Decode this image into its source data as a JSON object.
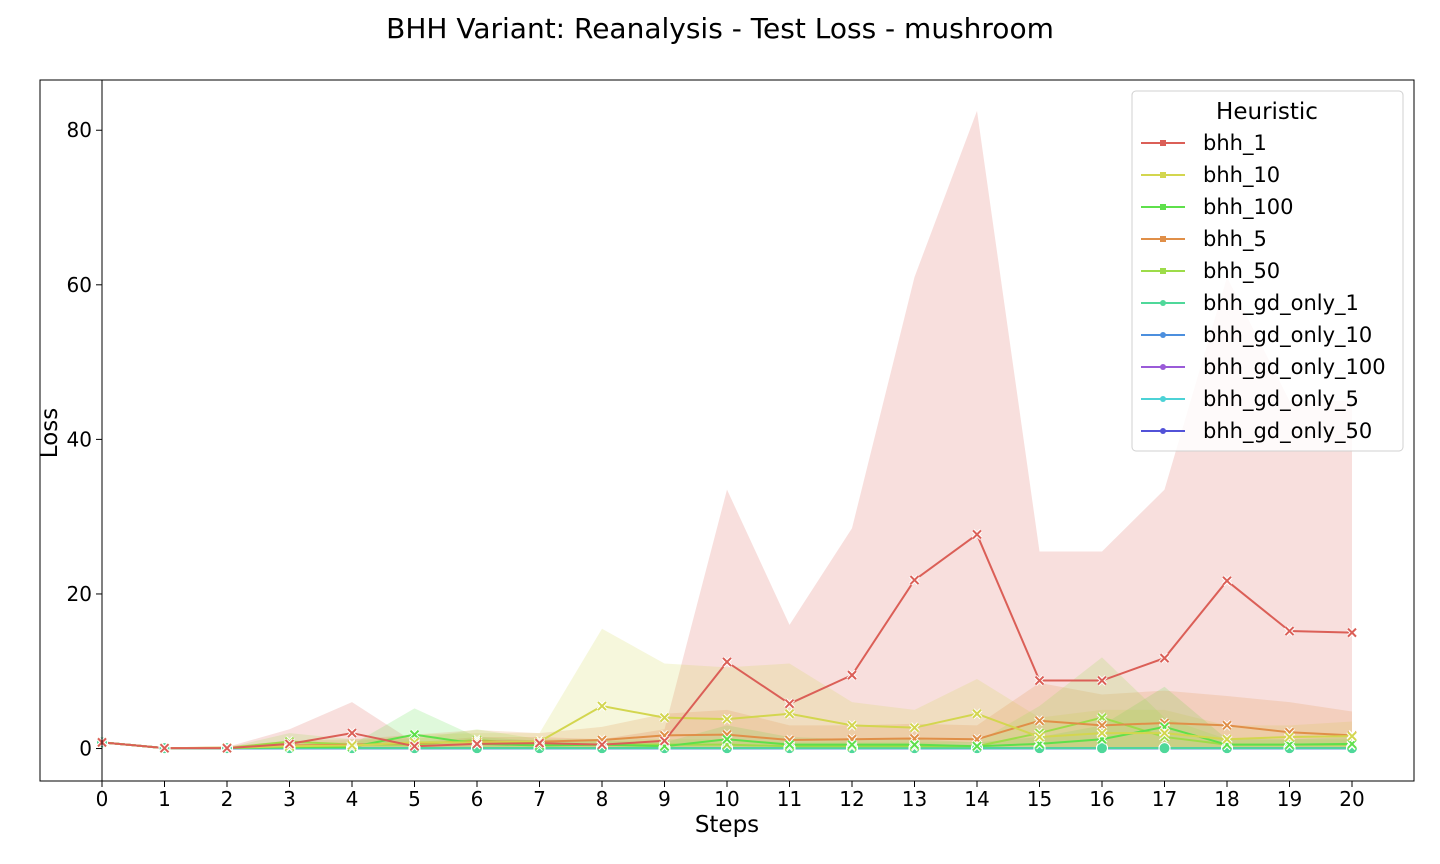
{
  "chart_data": {
    "type": "line",
    "title": "BHH Variant: Reanalysis - Test Loss - mushroom",
    "xlabel": "Steps",
    "ylabel": "Loss",
    "x": [
      0,
      1,
      2,
      3,
      4,
      5,
      6,
      7,
      8,
      9,
      10,
      11,
      12,
      13,
      14,
      15,
      16,
      17,
      18,
      19,
      20
    ],
    "xlim": [
      0,
      20
    ],
    "ylim": [
      -4.2,
      86.5
    ],
    "yticks": [
      0,
      20,
      40,
      60,
      80
    ],
    "grid": false,
    "legend": {
      "title": "Heuristic",
      "placement": "top-right"
    },
    "series": [
      {
        "name": "bhh_1",
        "color": "#db5f57",
        "marker": "x",
        "values": [
          0.8,
          0.05,
          0.05,
          0.6,
          2.0,
          0.3,
          0.6,
          0.7,
          0.5,
          1.0,
          11.2,
          5.8,
          9.5,
          21.8,
          27.7,
          8.8,
          8.8,
          11.7,
          21.7,
          15.2,
          15.0
        ],
        "lower": [
          0.8,
          0.0,
          0.0,
          0.0,
          0.0,
          0.0,
          0.0,
          0.0,
          0.0,
          0.0,
          0.0,
          0.0,
          0.0,
          0.0,
          0.0,
          0.0,
          0.0,
          0.0,
          0.0,
          0.0,
          0.0
        ],
        "upper": [
          0.8,
          0.1,
          0.2,
          2.5,
          6.0,
          0.8,
          1.5,
          1.5,
          1.2,
          2.5,
          33.5,
          16.0,
          28.5,
          61.0,
          82.5,
          25.5,
          25.5,
          33.5,
          61.0,
          45.0,
          45.0
        ]
      },
      {
        "name": "bhh_10",
        "color": "#d3d64f",
        "marker": "x",
        "values": [
          0.8,
          0.05,
          0.1,
          0.3,
          0.4,
          0.8,
          0.8,
          0.9,
          5.5,
          4.0,
          3.8,
          4.5,
          3.0,
          2.7,
          4.5,
          1.5,
          2.0,
          2.0,
          1.2,
          1.5,
          1.6
        ],
        "lower": [
          0.8,
          0.0,
          0.0,
          0.0,
          0.0,
          0.0,
          0.0,
          0.0,
          0.0,
          0.0,
          0.0,
          0.5,
          0.5,
          0.5,
          0.8,
          0.2,
          0.2,
          0.2,
          0.2,
          0.2,
          0.2
        ],
        "upper": [
          0.8,
          0.1,
          0.3,
          0.8,
          0.9,
          1.8,
          2.0,
          2.0,
          15.5,
          11.0,
          10.5,
          11.0,
          6.0,
          5.0,
          9.0,
          4.0,
          5.0,
          5.0,
          3.0,
          3.0,
          3.5
        ]
      },
      {
        "name": "bhh_100",
        "color": "#5ee04b",
        "marker": "x",
        "values": [
          0.8,
          0.05,
          0.05,
          0.2,
          0.2,
          1.8,
          0.6,
          0.4,
          0.5,
          0.3,
          1.2,
          0.5,
          0.5,
          0.5,
          0.3,
          0.6,
          1.2,
          2.8,
          0.5,
          0.5,
          0.6
        ],
        "lower": [
          0.8,
          0.0,
          0.0,
          0.0,
          0.0,
          0.0,
          0.0,
          0.0,
          0.0,
          0.0,
          0.0,
          0.0,
          0.0,
          0.0,
          0.0,
          0.0,
          0.0,
          0.0,
          0.0,
          0.0,
          0.0
        ],
        "upper": [
          0.8,
          0.1,
          0.1,
          0.5,
          0.5,
          5.2,
          1.5,
          1.0,
          1.0,
          0.8,
          3.0,
          1.5,
          1.2,
          1.2,
          0.8,
          1.5,
          3.0,
          8.0,
          1.2,
          1.2,
          1.5
        ]
      },
      {
        "name": "bhh_5",
        "color": "#e08f48",
        "marker": "x",
        "values": [
          0.8,
          0.05,
          0.1,
          0.4,
          0.5,
          0.7,
          0.9,
          0.9,
          1.1,
          1.7,
          1.8,
          1.1,
          1.2,
          1.3,
          1.2,
          3.6,
          3.0,
          3.3,
          3.0,
          2.1,
          1.7
        ],
        "lower": [
          0.8,
          0.0,
          0.0,
          0.0,
          0.0,
          0.0,
          0.0,
          0.0,
          0.0,
          0.0,
          0.0,
          0.0,
          0.0,
          0.0,
          0.0,
          0.0,
          0.0,
          0.0,
          0.0,
          0.0,
          0.0
        ],
        "upper": [
          0.8,
          0.1,
          0.3,
          1.0,
          1.2,
          1.8,
          2.4,
          2.0,
          2.8,
          4.5,
          5.0,
          3.0,
          3.0,
          3.2,
          3.0,
          8.5,
          7.0,
          7.5,
          6.8,
          6.0,
          4.8
        ]
      },
      {
        "name": "bhh_50",
        "color": "#9ddc49",
        "marker": "x",
        "values": [
          0.8,
          0.05,
          0.05,
          0.9,
          0.5,
          0.5,
          1.1,
          0.5,
          0.5,
          0.5,
          0.5,
          0.3,
          0.3,
          0.3,
          0.3,
          2.0,
          4.0,
          1.5,
          0.5,
          0.5,
          0.5
        ],
        "lower": [
          0.8,
          0.0,
          0.0,
          0.0,
          0.0,
          0.0,
          0.0,
          0.0,
          0.0,
          0.0,
          0.0,
          0.0,
          0.0,
          0.0,
          0.0,
          0.0,
          0.0,
          0.0,
          0.0,
          0.0,
          0.0
        ],
        "upper": [
          0.8,
          0.1,
          0.1,
          2.0,
          1.2,
          1.2,
          2.5,
          1.2,
          1.2,
          1.2,
          1.2,
          0.8,
          0.8,
          0.8,
          0.8,
          5.5,
          11.8,
          4.0,
          1.2,
          1.2,
          1.2
        ]
      },
      {
        "name": "bhh_gd_only_1",
        "color": "#4fd89a",
        "marker": "o",
        "values": [
          0.8,
          0.05,
          0.05,
          0.05,
          0.05,
          0.05,
          0.05,
          0.05,
          0.05,
          0.05,
          0.05,
          0.05,
          0.05,
          0.05,
          0.05,
          0.05,
          0.05,
          0.05,
          0.05,
          0.05,
          0.05
        ]
      },
      {
        "name": "bhh_gd_only_10",
        "color": "#4c8fde",
        "marker": "o",
        "values": [
          0.8,
          0.05,
          0.02,
          0.02,
          0.02,
          0.02,
          0.02,
          0.02,
          0.02,
          0.02,
          0.02,
          0.02,
          0.02,
          0.02,
          0.02,
          0.02,
          0.02,
          0.02,
          0.02,
          0.02,
          0.02
        ]
      },
      {
        "name": "bhh_gd_only_100",
        "color": "#9a5bd8",
        "marker": "o",
        "values": [
          0.8,
          0.05,
          0.02,
          0.02,
          0.02,
          0.02,
          0.02,
          0.02,
          0.02,
          0.02,
          0.02,
          0.02,
          0.02,
          0.02,
          0.02,
          0.02,
          0.02,
          0.02,
          0.02,
          0.02,
          0.02
        ]
      },
      {
        "name": "bhh_gd_only_5",
        "color": "#4cd2d6",
        "marker": "o",
        "values": [
          0.8,
          0.05,
          0.02,
          0.02,
          0.02,
          0.02,
          0.02,
          0.02,
          0.02,
          0.02,
          0.02,
          0.02,
          0.02,
          0.02,
          0.02,
          0.02,
          0.02,
          0.02,
          0.02,
          0.02,
          0.02
        ]
      },
      {
        "name": "bhh_gd_only_50",
        "color": "#5252d8",
        "marker": "o",
        "values": [
          0.8,
          0.05,
          0.02,
          0.02,
          0.02,
          0.02,
          0.02,
          0.02,
          0.02,
          0.02,
          0.02,
          0.02,
          0.02,
          0.02,
          0.02,
          0.02,
          0.02,
          0.02,
          0.02,
          0.02,
          0.02
        ]
      }
    ]
  }
}
